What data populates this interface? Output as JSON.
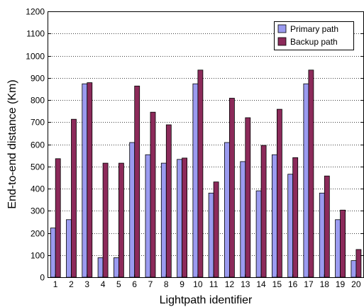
{
  "chart_data": {
    "type": "bar",
    "title": "",
    "xlabel": "Lightpath identifier",
    "ylabel": "End-to-end distance (Km)",
    "ylim": [
      0,
      1200
    ],
    "yticks": [
      0,
      100,
      200,
      300,
      400,
      500,
      600,
      700,
      800,
      900,
      1000,
      1100,
      1200
    ],
    "grid": "horizontal dotted",
    "legend_position": "top-right",
    "categories": [
      "1",
      "2",
      "3",
      "4",
      "5",
      "6",
      "7",
      "8",
      "9",
      "10",
      "11",
      "12",
      "13",
      "14",
      "15",
      "16",
      "17",
      "18",
      "19",
      "20"
    ],
    "series": [
      {
        "name": "Primary path",
        "color": "#9b9bf0",
        "values": [
          222,
          260,
          873,
          88,
          88,
          608,
          553,
          515,
          532,
          873,
          380,
          608,
          522,
          390,
          553,
          465,
          873,
          380,
          260,
          75
        ]
      },
      {
        "name": "Backup path",
        "color": "#8c2a5a",
        "values": [
          535,
          713,
          878,
          515,
          515,
          863,
          745,
          688,
          538,
          935,
          430,
          808,
          720,
          595,
          758,
          540,
          935,
          457,
          303,
          125
        ]
      }
    ]
  }
}
